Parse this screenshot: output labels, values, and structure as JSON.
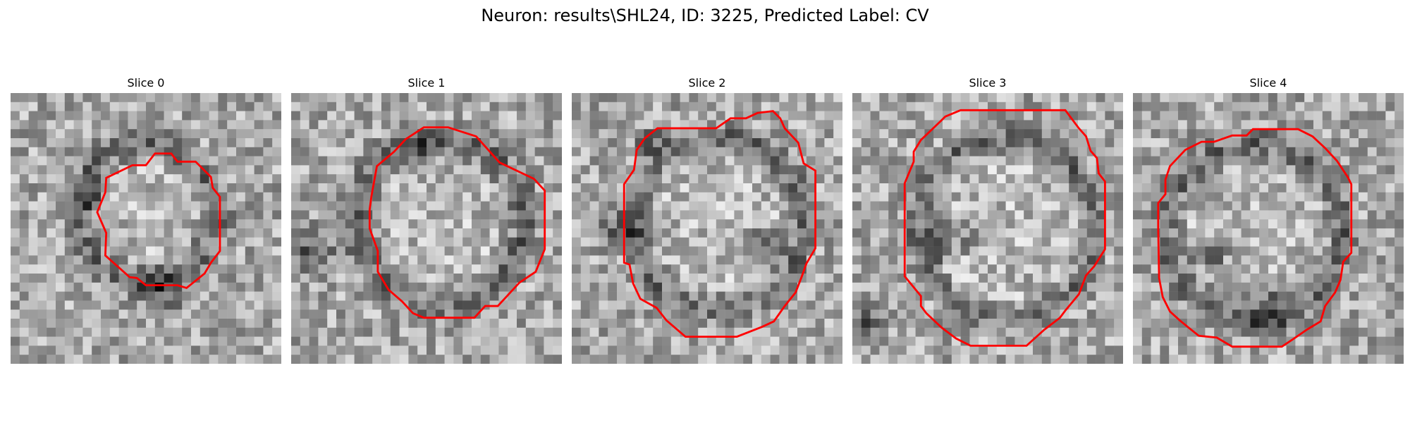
{
  "figure": {
    "title": "Neuron: results\\SHL24, ID: 3225, Predicted Label: CV"
  },
  "panels": [
    {
      "title": "Slice 0"
    },
    {
      "title": "Slice 1"
    },
    {
      "title": "Slice 2"
    },
    {
      "title": "Slice 3"
    },
    {
      "title": "Slice 4"
    }
  ],
  "colors": {
    "contour": "#ff0000",
    "background": "#ffffff"
  }
}
